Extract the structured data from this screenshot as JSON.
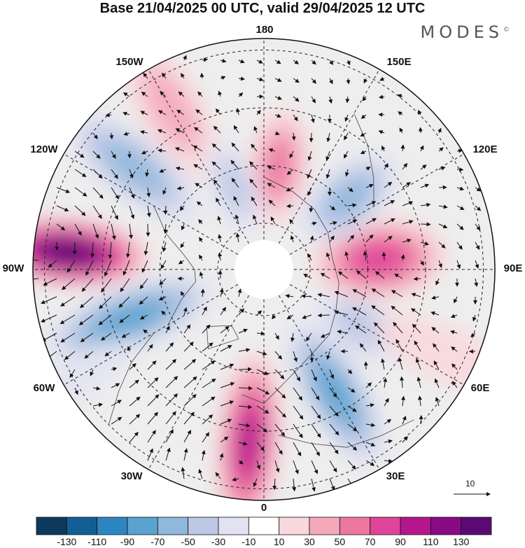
{
  "title": "Base 21/04/2025 00 UTC, valid 29/04/2025 12 UTC",
  "brand": "MODES",
  "brand_mark": "©",
  "longitude_labels": [
    "180",
    "150E",
    "120E",
    "90E",
    "60E",
    "30E",
    "0",
    "30W",
    "60W",
    "90W",
    "120W",
    "150W"
  ],
  "reference_vector": {
    "label": "10"
  },
  "colorbar": {
    "ticks": [
      "-130",
      "-110",
      "-90",
      "-70",
      "-50",
      "-30",
      "-10",
      "10",
      "30",
      "50",
      "70",
      "90",
      "110",
      "130"
    ],
    "colors": [
      "#0d3a5c",
      "#135f95",
      "#2e86c1",
      "#5aa3d0",
      "#8fb8dd",
      "#bcc8e4",
      "#e2e3f1",
      "#ffffff",
      "#f8d8dc",
      "#f4a9bb",
      "#ec78a1",
      "#e0449a",
      "#b5168e",
      "#8a0a86",
      "#5b0a74"
    ]
  },
  "anomalies": [
    {
      "lon": -95,
      "r": 0.85,
      "v": 130,
      "rx": 0.36,
      "ry": 0.15
    },
    {
      "lon": -70,
      "r": 0.62,
      "v": -80,
      "rx": 0.4,
      "ry": 0.14
    },
    {
      "lon": -5,
      "r": 0.75,
      "v": 90,
      "rx": 0.4,
      "ry": 0.14
    },
    {
      "lon": 30,
      "r": 0.62,
      "v": -75,
      "rx": 0.36,
      "ry": 0.14
    },
    {
      "lon": 60,
      "r": 0.48,
      "v": -45,
      "rx": 0.22,
      "ry": 0.14
    },
    {
      "lon": 95,
      "r": 0.5,
      "v": 70,
      "rx": 0.3,
      "ry": 0.18
    },
    {
      "lon": 130,
      "r": 0.48,
      "v": -60,
      "rx": 0.26,
      "ry": 0.14
    },
    {
      "lon": 172,
      "r": 0.45,
      "v": 55,
      "rx": 0.26,
      "ry": 0.13
    },
    {
      "lon": -150,
      "r": 0.8,
      "v": 35,
      "rx": 0.34,
      "ry": 0.14
    },
    {
      "lon": -128,
      "r": 0.72,
      "v": -55,
      "rx": 0.36,
      "ry": 0.14
    },
    {
      "lon": -160,
      "r": 0.38,
      "v": -35,
      "rx": 0.22,
      "ry": 0.1
    },
    {
      "lon": -60,
      "r": 0.95,
      "v": -25,
      "rx": 0.3,
      "ry": 0.09
    },
    {
      "lon": 65,
      "r": 0.88,
      "v": 25,
      "rx": 0.34,
      "ry": 0.12
    }
  ]
}
